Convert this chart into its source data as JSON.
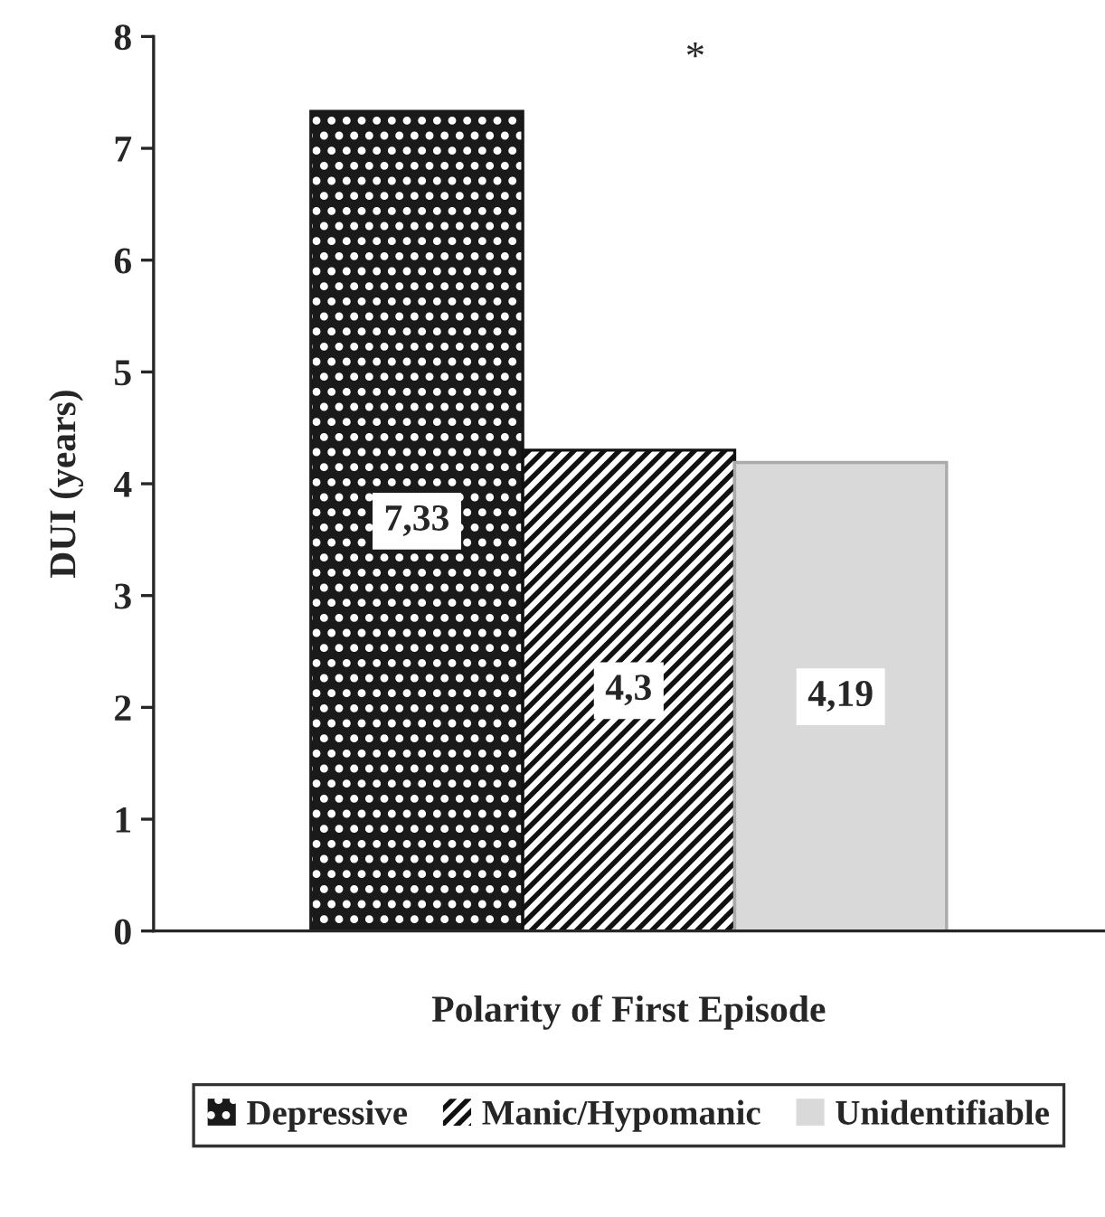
{
  "chart_data": {
    "type": "bar",
    "xlabel": "Polarity of First Episode",
    "ylabel": "DUI (years)",
    "categories": [
      null
    ],
    "series": [
      {
        "name": "Depressive",
        "color": "#1a1a1a",
        "values": [
          7.33
        ],
        "value_labels": [
          "7,33"
        ]
      },
      {
        "name": "Manic/Hypomanic",
        "color": "#ffffff",
        "values": [
          4.3
        ],
        "value_labels": [
          "4,3"
        ]
      },
      {
        "name": "Unidentifiable",
        "color": "#d9d9d9",
        "values": [
          4.19
        ],
        "value_labels": [
          "4,19"
        ]
      }
    ],
    "ylim": [
      0,
      8
    ],
    "yticks": [
      0,
      1,
      2,
      3,
      4,
      5,
      6,
      7,
      8
    ],
    "annotations": [
      "*"
    ],
    "legend": "bottom",
    "grid": false
  }
}
